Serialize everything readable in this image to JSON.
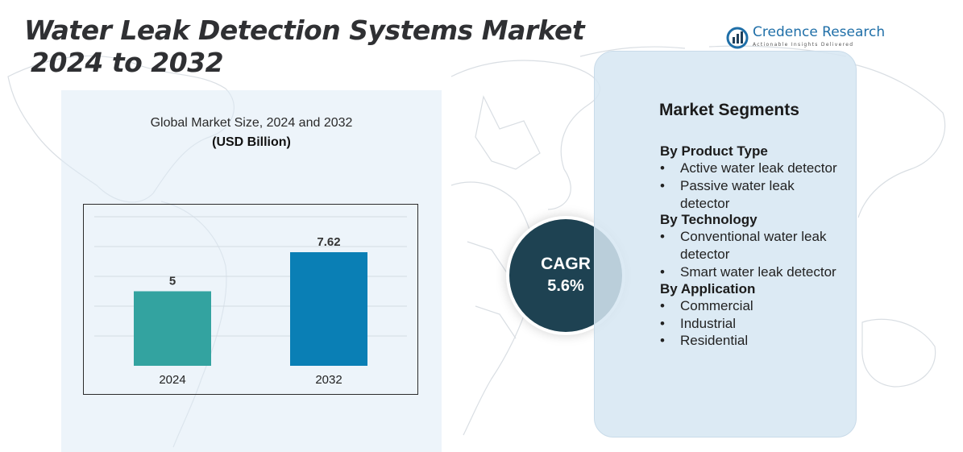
{
  "title": {
    "line1": "Water Leak Detection Systems Market",
    "line2": "2024 to 2032"
  },
  "logo": {
    "name": "Credence Research",
    "tagline": "Actionable Insights Delivered"
  },
  "colors": {
    "bar_2024": "#33a3a0",
    "bar_2032": "#0a7fb5",
    "cagr_circle": "#1e4252",
    "title_text": "#2f3033"
  },
  "chart_data": {
    "type": "bar",
    "title": "Global Market Size, 2024 and 2032",
    "unit": "(USD Billion)",
    "categories": [
      "2024",
      "2032"
    ],
    "values": [
      5,
      7.62
    ],
    "value_labels": [
      "5",
      "7.62"
    ],
    "ylim": [
      0,
      10
    ],
    "grid": true,
    "axes_visible": false
  },
  "cagr": {
    "label": "CAGR",
    "value": "5.6%"
  },
  "segments": {
    "title": "Market Segments",
    "groups": [
      {
        "title": "By Product Type",
        "items": [
          "Active water leak detector",
          "Passive water leak detector"
        ]
      },
      {
        "title": "By Technology",
        "items": [
          "Conventional water leak detector",
          "Smart water leak detector"
        ]
      },
      {
        "title": "By Application",
        "items": [
          "Commercial",
          "Industrial",
          "Residential"
        ]
      }
    ]
  }
}
